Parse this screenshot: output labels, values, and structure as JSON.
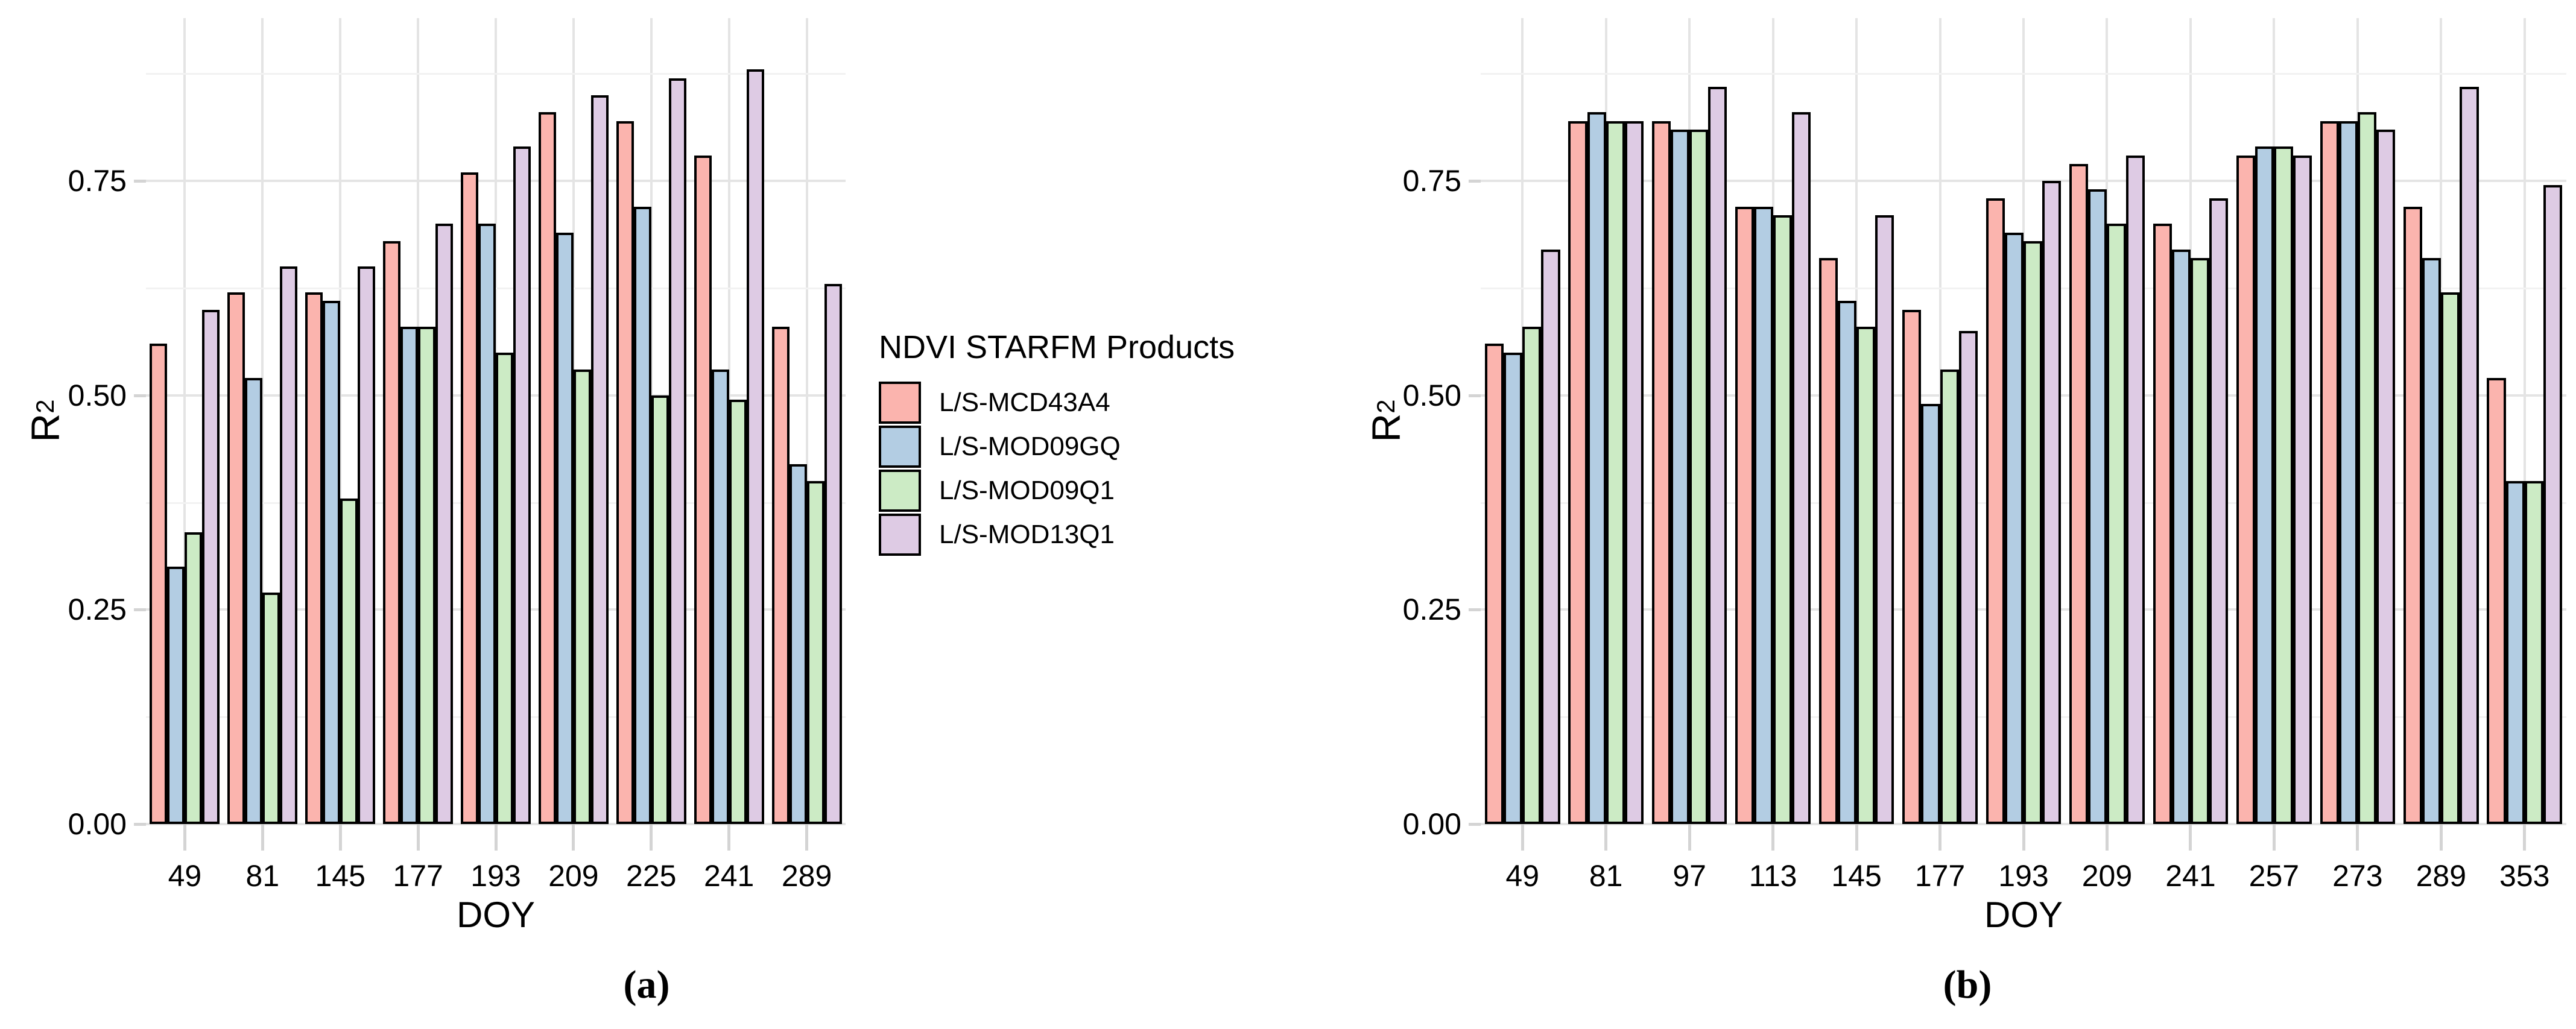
{
  "figure": {
    "captions": {
      "a": "(a)",
      "b": "(b)"
    }
  },
  "axes": {
    "y_title_base": "R",
    "y_title_sup": "2",
    "x_title": "DOY",
    "y_tick_labels": [
      "0.00",
      "0.25",
      "0.50",
      "0.75"
    ]
  },
  "legend": {
    "title": "NDVI STARFM Products",
    "items": [
      {
        "label": "L/S-MCD43A4",
        "color": "#FBB4AE"
      },
      {
        "label": "L/S-MOD09GQ",
        "color": "#B3CDE3"
      },
      {
        "label": "L/S-MOD09Q1",
        "color": "#CCEBC5"
      },
      {
        "label": "L/S-MOD13Q1",
        "color": "#DECBE4"
      }
    ]
  },
  "chart_data": [
    {
      "panel": "a",
      "type": "bar",
      "title": "(a)",
      "xlabel": "DOY",
      "ylabel": "R²",
      "ylim": [
        0,
        0.94
      ],
      "yticks_major": [
        0,
        0.25,
        0.5,
        0.75
      ],
      "yticks_minor": [
        0.125,
        0.375,
        0.625,
        0.875
      ],
      "grid": true,
      "legend_position": "right",
      "categories": [
        "49",
        "81",
        "145",
        "177",
        "193",
        "209",
        "225",
        "241",
        "289"
      ],
      "series": [
        {
          "name": "L/S-MCD43A4",
          "color": "#FBB4AE",
          "values": [
            0.56,
            0.62,
            0.62,
            0.68,
            0.76,
            0.83,
            0.82,
            0.78,
            0.58
          ]
        },
        {
          "name": "L/S-MOD09GQ",
          "color": "#B3CDE3",
          "values": [
            0.3,
            0.52,
            0.61,
            0.58,
            0.7,
            0.69,
            0.72,
            0.53,
            0.42
          ]
        },
        {
          "name": "L/S-MOD09Q1",
          "color": "#CCEBC5",
          "values": [
            0.34,
            0.27,
            0.38,
            0.58,
            0.55,
            0.53,
            0.5,
            0.495,
            0.4
          ]
        },
        {
          "name": "L/S-MOD13Q1",
          "color": "#DECBE4",
          "values": [
            0.6,
            0.65,
            0.65,
            0.7,
            0.79,
            0.85,
            0.87,
            0.88,
            0.63
          ]
        }
      ]
    },
    {
      "panel": "b",
      "type": "bar",
      "title": "(b)",
      "xlabel": "DOY",
      "ylabel": "R²",
      "ylim": [
        0,
        0.94
      ],
      "yticks_major": [
        0,
        0.25,
        0.5,
        0.75
      ],
      "yticks_minor": [
        0.125,
        0.375,
        0.625,
        0.875
      ],
      "grid": true,
      "legend_position": "none",
      "categories": [
        "49",
        "81",
        "97",
        "113",
        "145",
        "177",
        "193",
        "209",
        "241",
        "257",
        "273",
        "289",
        "353"
      ],
      "series": [
        {
          "name": "L/S-MCD43A4",
          "color": "#FBB4AE",
          "values": [
            0.56,
            0.82,
            0.82,
            0.72,
            0.66,
            0.6,
            0.73,
            0.77,
            0.7,
            0.78,
            0.82,
            0.72,
            0.52
          ]
        },
        {
          "name": "L/S-MOD09GQ",
          "color": "#B3CDE3",
          "values": [
            0.55,
            0.83,
            0.81,
            0.72,
            0.61,
            0.49,
            0.69,
            0.74,
            0.67,
            0.79,
            0.82,
            0.66,
            0.4
          ]
        },
        {
          "name": "L/S-MOD09Q1",
          "color": "#CCEBC5",
          "values": [
            0.58,
            0.82,
            0.81,
            0.71,
            0.58,
            0.53,
            0.68,
            0.7,
            0.66,
            0.79,
            0.83,
            0.62,
            0.4
          ]
        },
        {
          "name": "L/S-MOD13Q1",
          "color": "#DECBE4",
          "values": [
            0.67,
            0.82,
            0.86,
            0.83,
            0.71,
            0.575,
            0.75,
            0.78,
            0.73,
            0.78,
            0.81,
            0.86,
            0.745
          ]
        }
      ]
    }
  ],
  "ui_colors": {
    "background": "#FFFFFF",
    "gridline_major": "#E4E4E4",
    "gridline_minor": "#F2F2F2",
    "axis_tick": "#D4D4D4",
    "bar_border": "#000000",
    "text": "#000000"
  }
}
